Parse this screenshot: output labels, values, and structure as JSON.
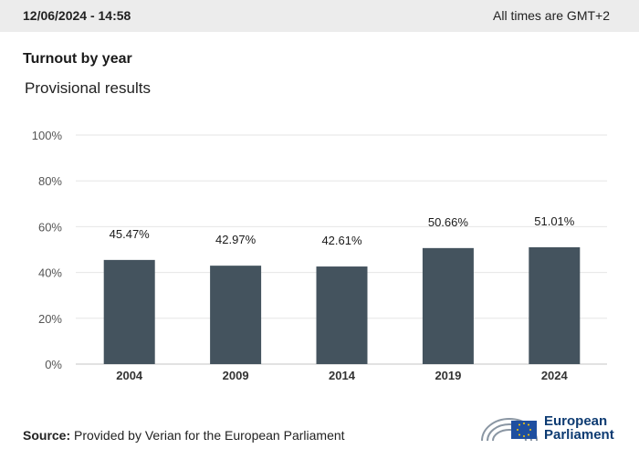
{
  "header": {
    "timestamp": "12/06/2024 - 14:58",
    "timezone_note": "All times are GMT+2"
  },
  "chart_data": {
    "type": "bar",
    "title": "Turnout by year",
    "subtitle": "Provisional results",
    "categories": [
      "2004",
      "2009",
      "2014",
      "2019",
      "2024"
    ],
    "values": [
      45.47,
      42.97,
      42.61,
      50.66,
      51.01
    ],
    "data_labels": [
      "45.47%",
      "42.97%",
      "42.61%",
      "50.66%",
      "51.01%"
    ],
    "ylim": [
      0,
      100
    ],
    "yticks": [
      "0%",
      "20%",
      "40%",
      "60%",
      "80%",
      "100%"
    ],
    "ytick_values": [
      0,
      20,
      40,
      60,
      80,
      100
    ],
    "grid": true,
    "bar_color": "#44535e"
  },
  "footer": {
    "source_label": "Source:",
    "source_text": "Provided by Verian for the European Parliament",
    "logo_line1": "European",
    "logo_line2": "Parliament",
    "logo_color": "#0d3b72",
    "flag_color": "#1f4fa0"
  }
}
